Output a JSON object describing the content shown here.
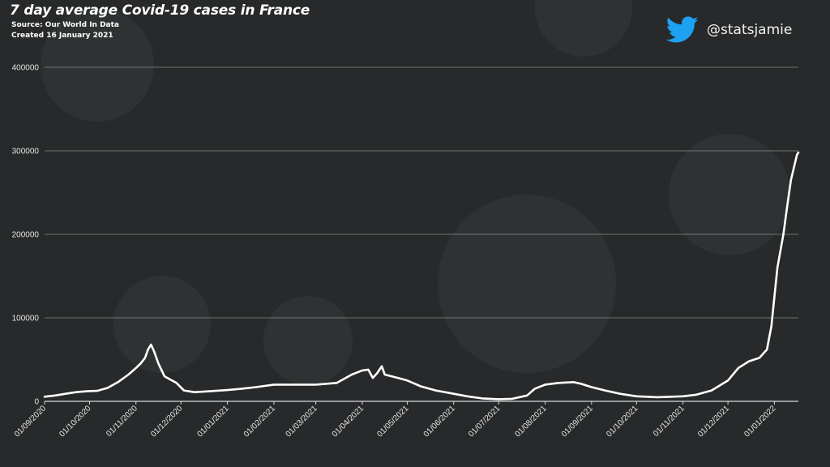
{
  "title": "7 day average Covid-19 cases in France",
  "source": "Source: Our World In Data",
  "created": "Created 16 January  2021",
  "handle": "@statsjamie",
  "icon": "twitter-bird-icon",
  "colors": {
    "background": "#27292a",
    "line": "#ffffff",
    "grid": "#8a8c8c",
    "brand": "#1da1f2"
  },
  "chart_data": {
    "type": "line",
    "title": "7 day average Covid-19 cases in France",
    "xlabel": "",
    "ylabel": "",
    "ylim": [
      0,
      400000
    ],
    "yticks": [
      0,
      100000,
      200000,
      300000,
      400000
    ],
    "ytick_labels": [
      "0",
      "100000",
      "200000",
      "300000",
      "400000"
    ],
    "grid": true,
    "legend": "none",
    "xticks": [
      "2020-09-01",
      "2020-10-01",
      "2020-11-01",
      "2020-12-01",
      "2021-01-01",
      "2021-02-01",
      "2021-03-01",
      "2021-04-01",
      "2021-05-01",
      "2021-06-01",
      "2021-07-01",
      "2021-08-01",
      "2021-09-01",
      "2021-10-01",
      "2021-11-01",
      "2021-12-01",
      "2022-01-01"
    ],
    "xtick_labels": [
      "01/09/2020",
      "01/10/2020",
      "01/11/2020",
      "01/12/2020",
      "01/01/2021",
      "01/02/2021",
      "01/03/2021",
      "01/04/2021",
      "01/05/2021",
      "01/06/2021",
      "01/07/2021",
      "01/08/2021",
      "01/09/2021",
      "01/10/2021",
      "01/11/2021",
      "01/12/2021",
      "01/01/2022"
    ],
    "series": [
      {
        "points": [
          [
            "2020-09-01",
            5500
          ],
          [
            "2020-09-08",
            7000
          ],
          [
            "2020-09-15",
            9000
          ],
          [
            "2020-09-22",
            11000
          ],
          [
            "2020-09-29",
            12000
          ],
          [
            "2020-10-06",
            12500
          ],
          [
            "2020-10-13",
            16000
          ],
          [
            "2020-10-20",
            23000
          ],
          [
            "2020-10-27",
            32000
          ],
          [
            "2020-11-01",
            40000
          ],
          [
            "2020-11-04",
            45000
          ],
          [
            "2020-11-07",
            52000
          ],
          [
            "2020-11-09",
            62000
          ],
          [
            "2020-11-11",
            68000
          ],
          [
            "2020-11-13",
            60000
          ],
          [
            "2020-11-16",
            45000
          ],
          [
            "2020-11-20",
            30000
          ],
          [
            "2020-11-24",
            26000
          ],
          [
            "2020-11-28",
            22000
          ],
          [
            "2020-12-03",
            13000
          ],
          [
            "2020-12-10",
            11000
          ],
          [
            "2020-12-20",
            12000
          ],
          [
            "2021-01-01",
            13500
          ],
          [
            "2021-01-10",
            15000
          ],
          [
            "2021-01-20",
            17000
          ],
          [
            "2021-02-01",
            20000
          ],
          [
            "2021-02-15",
            20000
          ],
          [
            "2021-03-01",
            20000
          ],
          [
            "2021-03-15",
            22000
          ],
          [
            "2021-03-25",
            32000
          ],
          [
            "2021-04-01",
            37000
          ],
          [
            "2021-04-05",
            38000
          ],
          [
            "2021-04-08",
            28000
          ],
          [
            "2021-04-11",
            34000
          ],
          [
            "2021-04-14",
            42000
          ],
          [
            "2021-04-16",
            32000
          ],
          [
            "2021-04-25",
            28000
          ],
          [
            "2021-05-01",
            25000
          ],
          [
            "2021-05-10",
            18000
          ],
          [
            "2021-05-20",
            13000
          ],
          [
            "2021-06-01",
            9000
          ],
          [
            "2021-06-10",
            6000
          ],
          [
            "2021-06-20",
            3500
          ],
          [
            "2021-07-01",
            2500
          ],
          [
            "2021-07-10",
            3000
          ],
          [
            "2021-07-20",
            7000
          ],
          [
            "2021-07-25",
            15000
          ],
          [
            "2021-08-01",
            20000
          ],
          [
            "2021-08-10",
            22000
          ],
          [
            "2021-08-20",
            23000
          ],
          [
            "2021-08-25",
            21000
          ],
          [
            "2021-09-01",
            17000
          ],
          [
            "2021-09-10",
            13000
          ],
          [
            "2021-09-20",
            9000
          ],
          [
            "2021-10-01",
            6000
          ],
          [
            "2021-10-15",
            5000
          ],
          [
            "2021-11-01",
            6000
          ],
          [
            "2021-11-10",
            8000
          ],
          [
            "2021-11-20",
            13000
          ],
          [
            "2021-12-01",
            25000
          ],
          [
            "2021-12-08",
            40000
          ],
          [
            "2021-12-15",
            48000
          ],
          [
            "2021-12-22",
            52000
          ],
          [
            "2021-12-27",
            62000
          ],
          [
            "2021-12-30",
            90000
          ],
          [
            "2022-01-03",
            160000
          ],
          [
            "2022-01-07",
            200000
          ],
          [
            "2022-01-10",
            240000
          ],
          [
            "2022-01-12",
            265000
          ],
          [
            "2022-01-14",
            280000
          ],
          [
            "2022-01-16",
            295000
          ],
          [
            "2022-01-17",
            298000
          ]
        ]
      }
    ]
  }
}
